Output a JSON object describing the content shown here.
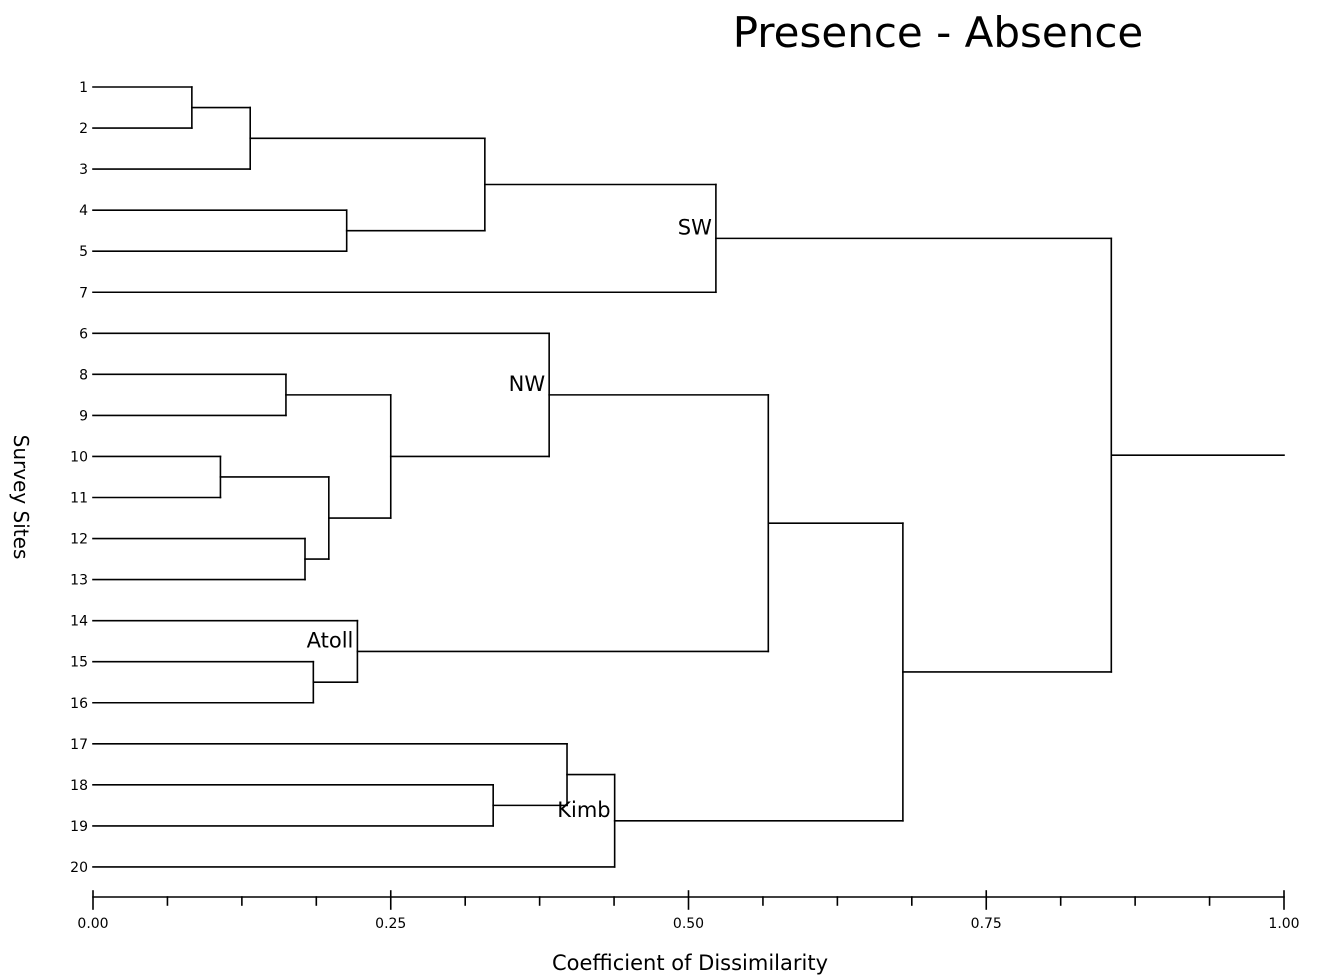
{
  "chart_data": {
    "type": "dendrogram",
    "title": "Presence - Absence",
    "xlabel": "Coefficient of Dissimilarity",
    "ylabel": "Survey Sites",
    "xlim": [
      0,
      1
    ],
    "x_ticks": [
      0,
      0.25,
      0.5,
      0.75,
      1
    ],
    "x_tick_labels": [
      "0.00",
      "0.25",
      "0.50",
      "0.75",
      "1.00"
    ],
    "minor_ticks_per_interval": 4,
    "leaves": [
      "1",
      "2",
      "3",
      "4",
      "5",
      "7",
      "6",
      "8",
      "9",
      "10",
      "11",
      "12",
      "13",
      "14",
      "15",
      "16",
      "17",
      "18",
      "19",
      "20"
    ],
    "merges": [
      {
        "id": "m1",
        "children": [
          "1",
          "2"
        ],
        "height": 0.083
      },
      {
        "id": "m2",
        "children": [
          "m1",
          "3"
        ],
        "height": 0.132
      },
      {
        "id": "m3",
        "children": [
          "4",
          "5"
        ],
        "height": 0.213
      },
      {
        "id": "m4",
        "children": [
          "m2",
          "m3"
        ],
        "height": 0.329
      },
      {
        "id": "m5",
        "children": [
          "m4",
          "7"
        ],
        "height": 0.523
      },
      {
        "id": "m6",
        "children": [
          "8",
          "9"
        ],
        "height": 0.162
      },
      {
        "id": "m7",
        "children": [
          "10",
          "11"
        ],
        "height": 0.107
      },
      {
        "id": "m8",
        "children": [
          "12",
          "13"
        ],
        "height": 0.178
      },
      {
        "id": "m9",
        "children": [
          "m7",
          "m8"
        ],
        "height": 0.198
      },
      {
        "id": "m10",
        "children": [
          "m6",
          "m9"
        ],
        "height": 0.25
      },
      {
        "id": "m11",
        "children": [
          "6",
          "m10"
        ],
        "height": 0.383
      },
      {
        "id": "m12",
        "children": [
          "15",
          "16"
        ],
        "height": 0.185
      },
      {
        "id": "m13",
        "children": [
          "14",
          "m12"
        ],
        "height": 0.222
      },
      {
        "id": "m14",
        "children": [
          "m11",
          "m13"
        ],
        "height": 0.567
      },
      {
        "id": "m15",
        "children": [
          "18",
          "19"
        ],
        "height": 0.336
      },
      {
        "id": "m16",
        "children": [
          "17",
          "m15"
        ],
        "height": 0.398
      },
      {
        "id": "m17",
        "children": [
          "m16",
          "20"
        ],
        "height": 0.438
      },
      {
        "id": "m18",
        "children": [
          "m14",
          "m17"
        ],
        "height": 0.68
      },
      {
        "id": "m19",
        "children": [
          "m5",
          "m18"
        ],
        "height": 0.855
      }
    ],
    "root_line_to": 1.0,
    "group_labels": [
      {
        "text": "SW",
        "node": "m5"
      },
      {
        "text": "NW",
        "node": "m11"
      },
      {
        "text": "Atoll",
        "node": "m13"
      },
      {
        "text": "Kimb",
        "node": "m17"
      }
    ]
  }
}
